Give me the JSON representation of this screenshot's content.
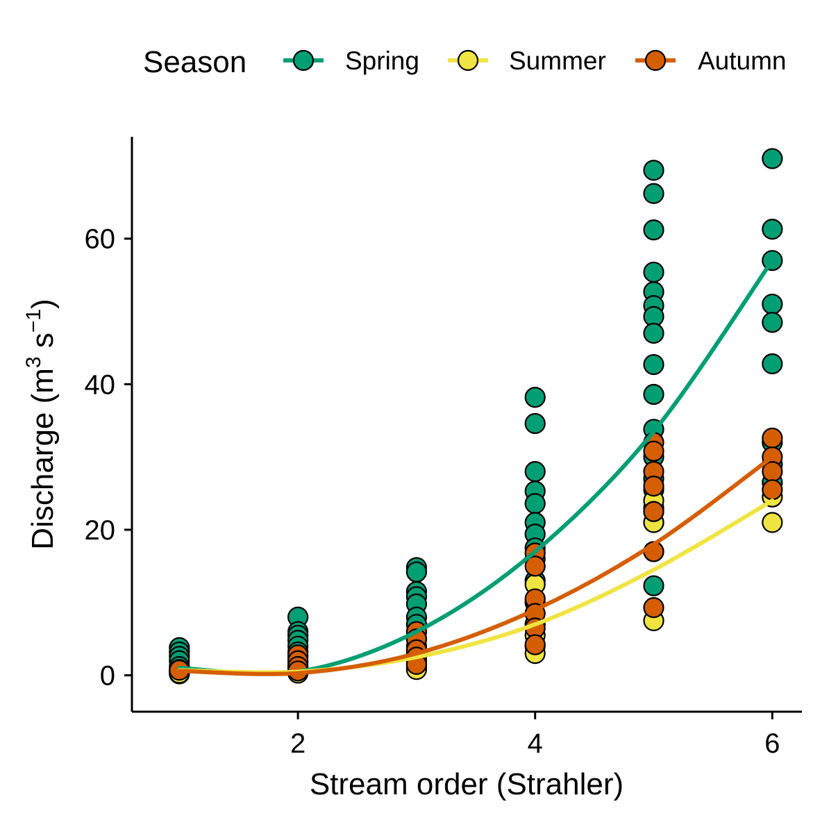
{
  "legend": {
    "title": "Season",
    "entries": [
      {
        "label": "Spring",
        "color": "#009E73"
      },
      {
        "label": "Summer",
        "color": "#F0E442"
      },
      {
        "label": "Autumn",
        "color": "#D55E00"
      }
    ]
  },
  "chart_data": {
    "type": "scatter",
    "xlabel": "Stream order (Strahler)",
    "ylabel": "Discharge (m³ s⁻¹)",
    "ylabel_parts": {
      "main": "Discharge (m",
      "sup1": "3",
      "mid": " s",
      "sup2": "−1",
      "end": ")"
    },
    "xlim": [
      0.6,
      6.25
    ],
    "ylim": [
      -5,
      74
    ],
    "x_ticks": [
      2,
      4,
      6
    ],
    "y_ticks": [
      0,
      20,
      40,
      60
    ],
    "grid": false,
    "legend_position": "top",
    "series": [
      {
        "name": "Spring",
        "color": "#009E73",
        "points": [
          [
            1,
            3.8
          ],
          [
            1,
            3.2
          ],
          [
            1,
            2.6
          ],
          [
            1,
            2.0
          ],
          [
            1,
            1.2
          ],
          [
            1,
            0.6
          ],
          [
            1,
            0.2
          ],
          [
            2,
            8.0
          ],
          [
            2,
            6.0
          ],
          [
            2,
            5.5
          ],
          [
            2,
            4.8
          ],
          [
            2,
            4.0
          ],
          [
            2,
            3.2
          ],
          [
            2,
            2.5
          ],
          [
            2,
            1.8
          ],
          [
            2,
            1.0
          ],
          [
            2,
            0.5
          ],
          [
            3,
            14.8
          ],
          [
            3,
            14.2
          ],
          [
            3,
            11.5
          ],
          [
            3,
            10.8
          ],
          [
            3,
            9.8
          ],
          [
            3,
            8.0
          ],
          [
            3,
            7.0
          ],
          [
            3,
            6.0
          ],
          [
            3,
            5.0
          ],
          [
            3,
            4.0
          ],
          [
            3,
            3.0
          ],
          [
            3,
            2.0
          ],
          [
            3,
            1.0
          ],
          [
            4,
            38.2
          ],
          [
            4,
            34.6
          ],
          [
            4,
            28.0
          ],
          [
            4,
            25.3
          ],
          [
            4,
            23.6
          ],
          [
            4,
            21.0
          ],
          [
            4,
            19.4
          ],
          [
            4,
            17.5
          ],
          [
            4,
            16.0
          ],
          [
            4,
            13.0
          ],
          [
            4,
            10.0
          ],
          [
            4,
            7.0
          ],
          [
            5,
            69.4
          ],
          [
            5,
            66.2
          ],
          [
            5,
            61.2
          ],
          [
            5,
            55.4
          ],
          [
            5,
            52.7
          ],
          [
            5,
            50.8
          ],
          [
            5,
            49.3
          ],
          [
            5,
            47.0
          ],
          [
            5,
            42.7
          ],
          [
            5,
            38.6
          ],
          [
            5,
            33.8
          ],
          [
            5,
            30.0
          ],
          [
            5,
            27.0
          ],
          [
            5,
            25.5
          ],
          [
            5,
            23.0
          ],
          [
            5,
            21.0
          ],
          [
            5,
            12.3
          ],
          [
            6,
            71.0
          ],
          [
            6,
            61.3
          ],
          [
            6,
            57.0
          ],
          [
            6,
            51.0
          ],
          [
            6,
            48.5
          ],
          [
            6,
            42.8
          ],
          [
            6,
            32.0
          ],
          [
            6,
            29.0
          ],
          [
            6,
            26.5
          ]
        ]
      },
      {
        "name": "Summer",
        "color": "#F0E442",
        "points": [
          [
            1,
            0.8
          ],
          [
            1,
            0.5
          ],
          [
            1,
            0.3
          ],
          [
            2,
            1.5
          ],
          [
            2,
            1.0
          ],
          [
            2,
            0.6
          ],
          [
            2,
            0.3
          ],
          [
            3,
            2.5
          ],
          [
            3,
            1.8
          ],
          [
            3,
            1.2
          ],
          [
            3,
            0.8
          ],
          [
            4,
            12.5
          ],
          [
            4,
            7.0
          ],
          [
            4,
            5.5
          ],
          [
            4,
            4.0
          ],
          [
            4,
            3.0
          ],
          [
            5,
            24.0
          ],
          [
            5,
            22.5
          ],
          [
            5,
            21.0
          ],
          [
            5,
            17.0
          ],
          [
            5,
            7.5
          ],
          [
            6,
            24.5
          ],
          [
            6,
            21.0
          ]
        ]
      },
      {
        "name": "Autumn",
        "color": "#D55E00",
        "points": [
          [
            1,
            0.7
          ],
          [
            2,
            2.8
          ],
          [
            2,
            2.0
          ],
          [
            2,
            1.2
          ],
          [
            2,
            0.6
          ],
          [
            3,
            6.0
          ],
          [
            3,
            5.0
          ],
          [
            3,
            3.5
          ],
          [
            3,
            2.5
          ],
          [
            3,
            1.5
          ],
          [
            4,
            16.8
          ],
          [
            4,
            15.0
          ],
          [
            4,
            10.5
          ],
          [
            4,
            8.5
          ],
          [
            4,
            6.5
          ],
          [
            4,
            4.2
          ],
          [
            5,
            32.0
          ],
          [
            5,
            30.8
          ],
          [
            5,
            28.0
          ],
          [
            5,
            26.0
          ],
          [
            5,
            22.5
          ],
          [
            5,
            17.0
          ],
          [
            5,
            9.3
          ],
          [
            6,
            32.6
          ],
          [
            6,
            30.0
          ],
          [
            6,
            28.0
          ],
          [
            6,
            25.5
          ]
        ]
      }
    ],
    "fits": [
      {
        "name": "Spring",
        "color": "#009E73",
        "x": [
          1,
          2,
          3,
          4,
          5,
          6
        ],
        "y": [
          1.0,
          0.5,
          6.0,
          17.0,
          33.5,
          57.0
        ]
      },
      {
        "name": "Summer",
        "color": "#F0E442",
        "x": [
          1,
          2,
          3,
          4,
          5,
          6
        ],
        "y": [
          0.7,
          0.5,
          2.5,
          7.0,
          14.5,
          24.0
        ]
      },
      {
        "name": "Autumn",
        "color": "#D55E00",
        "x": [
          1,
          2,
          3,
          4,
          5,
          6
        ],
        "y": [
          0.6,
          0.3,
          3.0,
          9.0,
          18.0,
          30.0
        ]
      }
    ]
  }
}
